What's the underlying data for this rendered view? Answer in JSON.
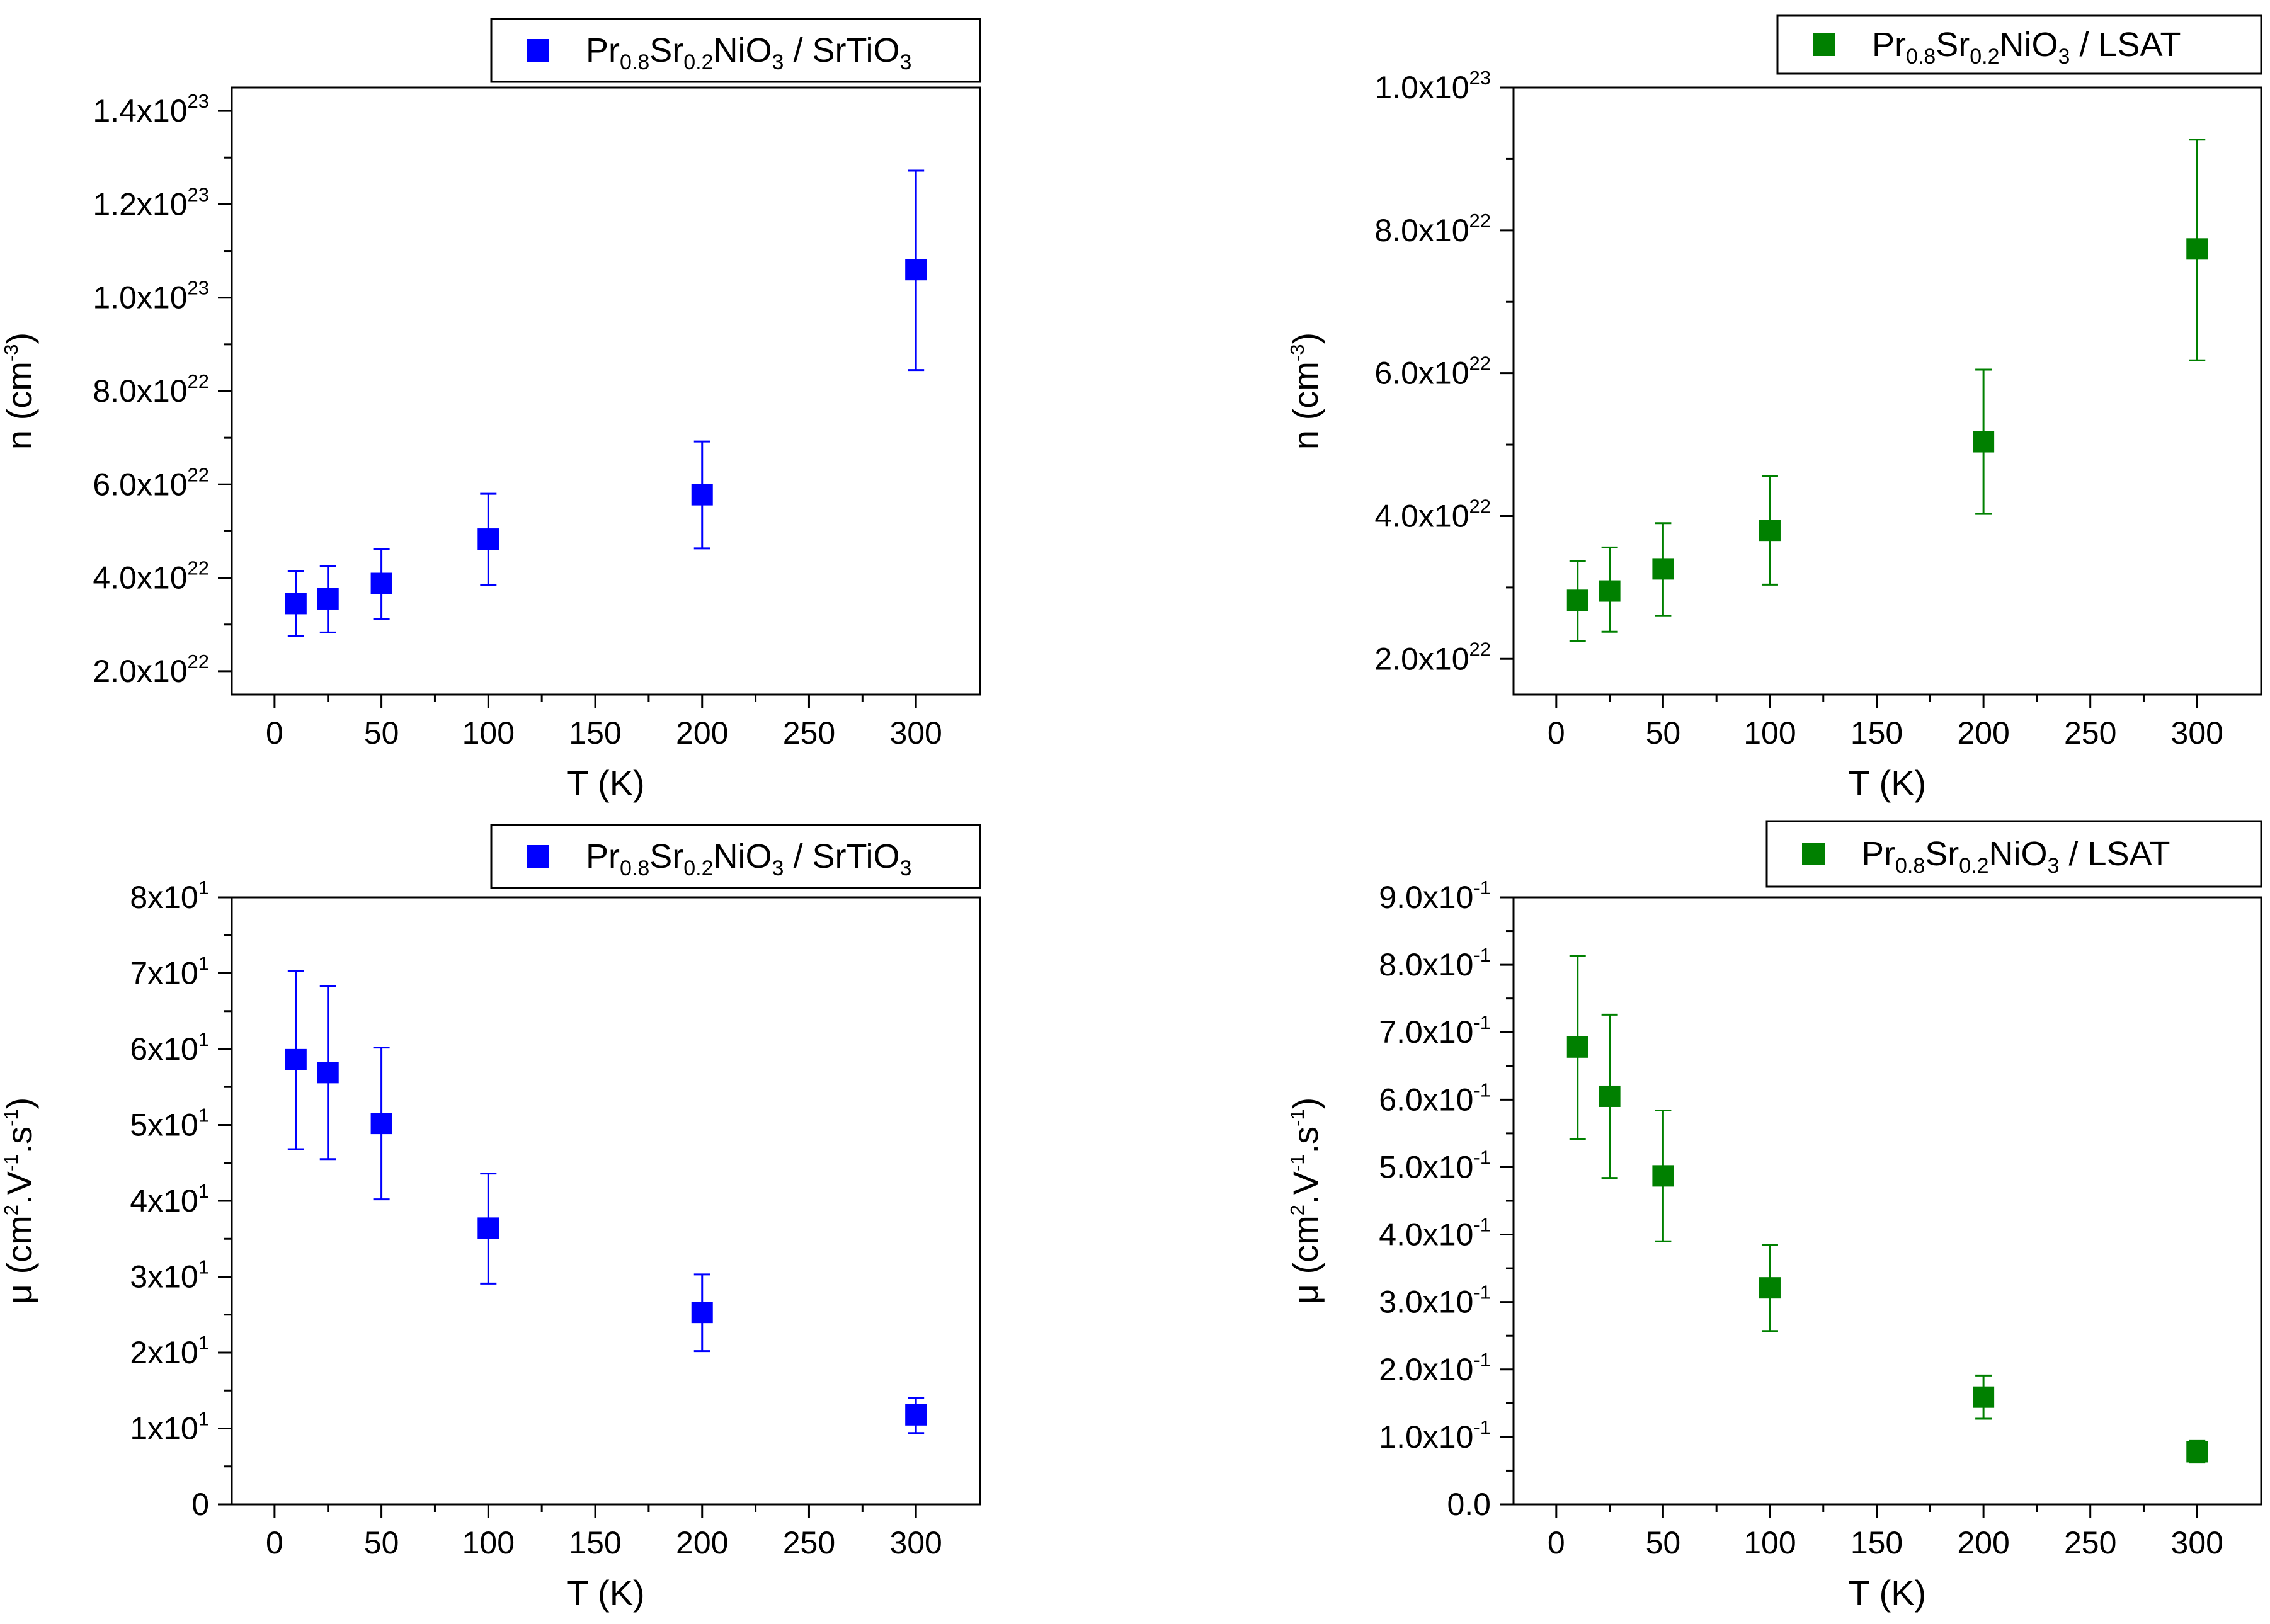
{
  "chart_data": [
    {
      "type": "scatter",
      "panel": "top-left",
      "title": "",
      "xlabel": "T (K)",
      "ylabel": "n (cm",
      "ylabel_sup": "-3",
      "ylabel_close": ")",
      "xlim": [
        -20,
        330
      ],
      "ylim": [
        1.5e+22,
        1.45e+23
      ],
      "xticks": [
        0,
        50,
        100,
        150,
        200,
        250,
        300
      ],
      "yticks": [
        {
          "value": 2e+22,
          "mant": "2.0x10",
          "exp": "22"
        },
        {
          "value": 4e+22,
          "mant": "4.0x10",
          "exp": "22"
        },
        {
          "value": 6e+22,
          "mant": "6.0x10",
          "exp": "22"
        },
        {
          "value": 8e+22,
          "mant": "8.0x10",
          "exp": "22"
        },
        {
          "value": 1e+23,
          "mant": "1.0x10",
          "exp": "23"
        },
        {
          "value": 1.2e+23,
          "mant": "1.2x10",
          "exp": "23"
        },
        {
          "value": 1.4e+23,
          "mant": "1.4x10",
          "exp": "23"
        }
      ],
      "legend": {
        "position": "top-right",
        "color": "#0000FF",
        "pr": "Pr",
        "pr_sub": "0.8",
        "sr": "Sr",
        "sr_sub": "0.2",
        "nio": "NiO",
        "nio_sub": "3",
        "substrate": " / SrTiO",
        "substrate_sub": "3"
      },
      "series": [
        {
          "name": "Pr0.8Sr0.2NiO3 / SrTiO3",
          "color": "#0000FF",
          "x": [
            10,
            25,
            50,
            100,
            200,
            300
          ],
          "y": [
            3.45e+22,
            3.55e+22,
            3.88e+22,
            4.83e+22,
            5.78e+22,
            1.06e+23
          ],
          "err_low": [
            2.75e+22,
            2.83e+22,
            3.12e+22,
            3.85e+22,
            4.63e+22,
            8.45e+22
          ],
          "err_high": [
            4.15e+22,
            4.25e+22,
            4.62e+22,
            5.8e+22,
            6.92e+22,
            1.272e+23
          ]
        }
      ]
    },
    {
      "type": "scatter",
      "panel": "top-right",
      "title": "",
      "xlabel": "T (K)",
      "ylabel": "n (cm",
      "ylabel_sup": "-3",
      "ylabel_close": ")",
      "xlim": [
        -20,
        330
      ],
      "ylim": [
        1.5e+22,
        1e+23
      ],
      "xticks": [
        0,
        50,
        100,
        150,
        200,
        250,
        300
      ],
      "yticks": [
        {
          "value": 2e+22,
          "mant": "2.0x10",
          "exp": "22"
        },
        {
          "value": 4e+22,
          "mant": "4.0x10",
          "exp": "22"
        },
        {
          "value": 6e+22,
          "mant": "6.0x10",
          "exp": "22"
        },
        {
          "value": 8e+22,
          "mant": "8.0x10",
          "exp": "22"
        },
        {
          "value": 1e+23,
          "mant": "1.0x10",
          "exp": "23"
        }
      ],
      "legend": {
        "position": "top-right",
        "color": "#008000",
        "pr": "Pr",
        "pr_sub": "0.8",
        "sr": "Sr",
        "sr_sub": "0.2",
        "nio": "NiO",
        "nio_sub": "3",
        "substrate": " / LSAT",
        "substrate_sub": ""
      },
      "series": [
        {
          "name": "Pr0.8Sr0.2NiO3 / LSAT",
          "color": "#008000",
          "x": [
            10,
            25,
            50,
            100,
            200,
            300
          ],
          "y": [
            2.82e+22,
            2.95e+22,
            3.26e+22,
            3.8e+22,
            5.04e+22,
            7.74e+22
          ],
          "err_low": [
            2.25e+22,
            2.38e+22,
            2.6e+22,
            3.04e+22,
            4.03e+22,
            6.18e+22
          ],
          "err_high": [
            3.37e+22,
            3.56e+22,
            3.9e+22,
            4.56e+22,
            6.05e+22,
            9.27e+22
          ]
        }
      ]
    },
    {
      "type": "scatter",
      "panel": "bottom-left",
      "title": "",
      "xlabel": "T (K)",
      "ylabel": "μ (cm",
      "ylabel_sup": "2",
      "ylabel_mid": ".V",
      "ylabel_sup2": "-1",
      "ylabel_mid2": ".s",
      "ylabel_sup3": "-1",
      "ylabel_close": ")",
      "xlim": [
        -20,
        330
      ],
      "ylim": [
        0,
        80
      ],
      "xticks": [
        0,
        50,
        100,
        150,
        200,
        250,
        300
      ],
      "yticks": [
        {
          "value": 0,
          "mant": "0",
          "exp": ""
        },
        {
          "value": 10,
          "mant": "1x10",
          "exp": "1"
        },
        {
          "value": 20,
          "mant": "2x10",
          "exp": "1"
        },
        {
          "value": 30,
          "mant": "3x10",
          "exp": "1"
        },
        {
          "value": 40,
          "mant": "4x10",
          "exp": "1"
        },
        {
          "value": 50,
          "mant": "5x10",
          "exp": "1"
        },
        {
          "value": 60,
          "mant": "6x10",
          "exp": "1"
        },
        {
          "value": 70,
          "mant": "7x10",
          "exp": "1"
        },
        {
          "value": 80,
          "mant": "8x10",
          "exp": "1"
        }
      ],
      "legend": {
        "position": "top-right",
        "color": "#0000FF",
        "pr": "Pr",
        "pr_sub": "0.8",
        "sr": "Sr",
        "sr_sub": "0.2",
        "nio": "NiO",
        "nio_sub": "3",
        "substrate": " / SrTiO",
        "substrate_sub": "3"
      },
      "series": [
        {
          "name": "Pr0.8Sr0.2NiO3 / SrTiO3",
          "color": "#0000FF",
          "x": [
            10,
            25,
            50,
            100,
            200,
            300
          ],
          "y": [
            58.6,
            56.9,
            50.2,
            36.4,
            25.3,
            11.8
          ],
          "err_low": [
            46.8,
            45.5,
            40.2,
            29.1,
            20.2,
            9.4
          ],
          "err_high": [
            70.3,
            68.3,
            60.2,
            43.6,
            30.3,
            14.0
          ]
        }
      ]
    },
    {
      "type": "scatter",
      "panel": "bottom-right",
      "title": "",
      "xlabel": "T (K)",
      "ylabel": "μ (cm",
      "ylabel_sup": "2",
      "ylabel_mid": ".V",
      "ylabel_sup2": "-1",
      "ylabel_mid2": ".s",
      "ylabel_sup3": "-1",
      "ylabel_close": ")",
      "xlim": [
        -20,
        330
      ],
      "ylim": [
        0,
        0.9
      ],
      "xticks": [
        0,
        50,
        100,
        150,
        200,
        250,
        300
      ],
      "yticks": [
        {
          "value": 0,
          "mant": "0.0",
          "exp": ""
        },
        {
          "value": 0.1,
          "mant": "1.0x10",
          "exp": "-1"
        },
        {
          "value": 0.2,
          "mant": "2.0x10",
          "exp": "-1"
        },
        {
          "value": 0.3,
          "mant": "3.0x10",
          "exp": "-1"
        },
        {
          "value": 0.4,
          "mant": "4.0x10",
          "exp": "-1"
        },
        {
          "value": 0.5,
          "mant": "5.0x10",
          "exp": "-1"
        },
        {
          "value": 0.6,
          "mant": "6.0x10",
          "exp": "-1"
        },
        {
          "value": 0.7,
          "mant": "7.0x10",
          "exp": "-1"
        },
        {
          "value": 0.8,
          "mant": "8.0x10",
          "exp": "-1"
        },
        {
          "value": 0.9,
          "mant": "9.0x10",
          "exp": "-1"
        }
      ],
      "legend": {
        "position": "top-right",
        "color": "#008000",
        "pr": "Pr",
        "pr_sub": "0.8",
        "sr": "Sr",
        "sr_sub": "0.2",
        "nio": "NiO",
        "nio_sub": "3",
        "substrate": " / LSAT",
        "substrate_sub": ""
      },
      "series": [
        {
          "name": "Pr0.8Sr0.2NiO3 / LSAT",
          "color": "#008000",
          "x": [
            10,
            25,
            50,
            100,
            200,
            300
          ],
          "y": [
            0.678,
            0.605,
            0.487,
            0.321,
            0.159,
            0.078
          ],
          "err_low": [
            0.542,
            0.484,
            0.39,
            0.257,
            0.127,
            0.062
          ],
          "err_high": [
            0.813,
            0.726,
            0.584,
            0.385,
            0.191,
            0.094
          ]
        }
      ]
    }
  ]
}
